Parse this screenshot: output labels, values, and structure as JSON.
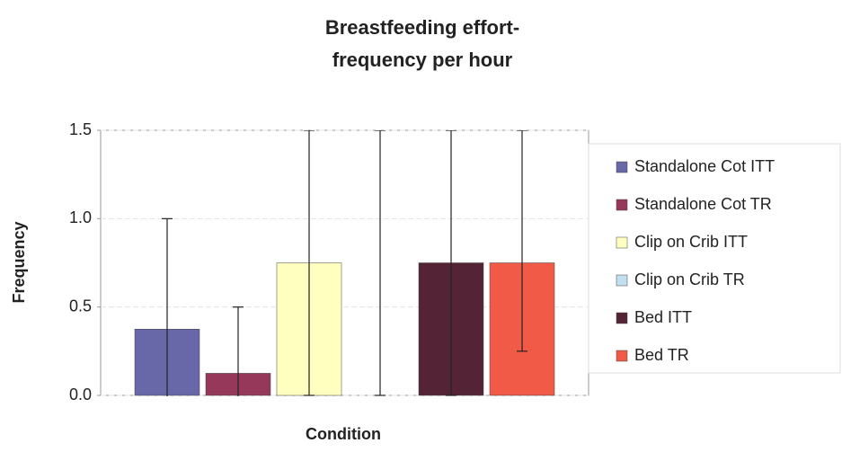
{
  "chart_data": {
    "type": "bar",
    "title": [
      "Breastfeeding effort-",
      "frequency per hour"
    ],
    "x_label": "Condition",
    "y_label": "Frequency",
    "ylim": [
      0,
      1.5
    ],
    "yticks": [
      {
        "value": 0,
        "label": "0.0"
      },
      0.5,
      {
        "value": 1,
        "label": "1.0"
      },
      1.5
    ],
    "grid": true,
    "legend": "right",
    "series": [
      {
        "name": "Standalone Cot ITT",
        "color": "#6868a8",
        "values": [
          0.375
        ],
        "errors_minus": [
          0.625
        ],
        "errors_plus": [
          0.625
        ]
      },
      {
        "name": "Standalone Cot TR",
        "color": "#96385a",
        "values": [
          0.125
        ],
        "errors_minus": [
          0.375
        ],
        "errors_plus": [
          0.375
        ]
      },
      {
        "name": "Clip on Crib ITT",
        "color": "#ffffc0",
        "values": [
          0.75
        ],
        "errors_minus": [
          0.75
        ],
        "errors_plus": [
          0.75
        ]
      },
      {
        "name": "Clip on Crib TR",
        "color": "#c0e0f0",
        "values": [
          0
        ],
        "errors_minus": [
          0
        ],
        "errors_plus": [
          1.5
        ]
      },
      {
        "name": "Bed ITT",
        "color": "#542436",
        "values": [
          0.75
        ],
        "errors_minus": [
          0.75
        ],
        "errors_plus": [
          0.75
        ]
      },
      {
        "name": "Bed TR",
        "color": "#f05a46",
        "values": [
          0.75
        ],
        "errors_minus": [
          0.5
        ],
        "errors_plus": [
          0.75
        ]
      }
    ]
  }
}
